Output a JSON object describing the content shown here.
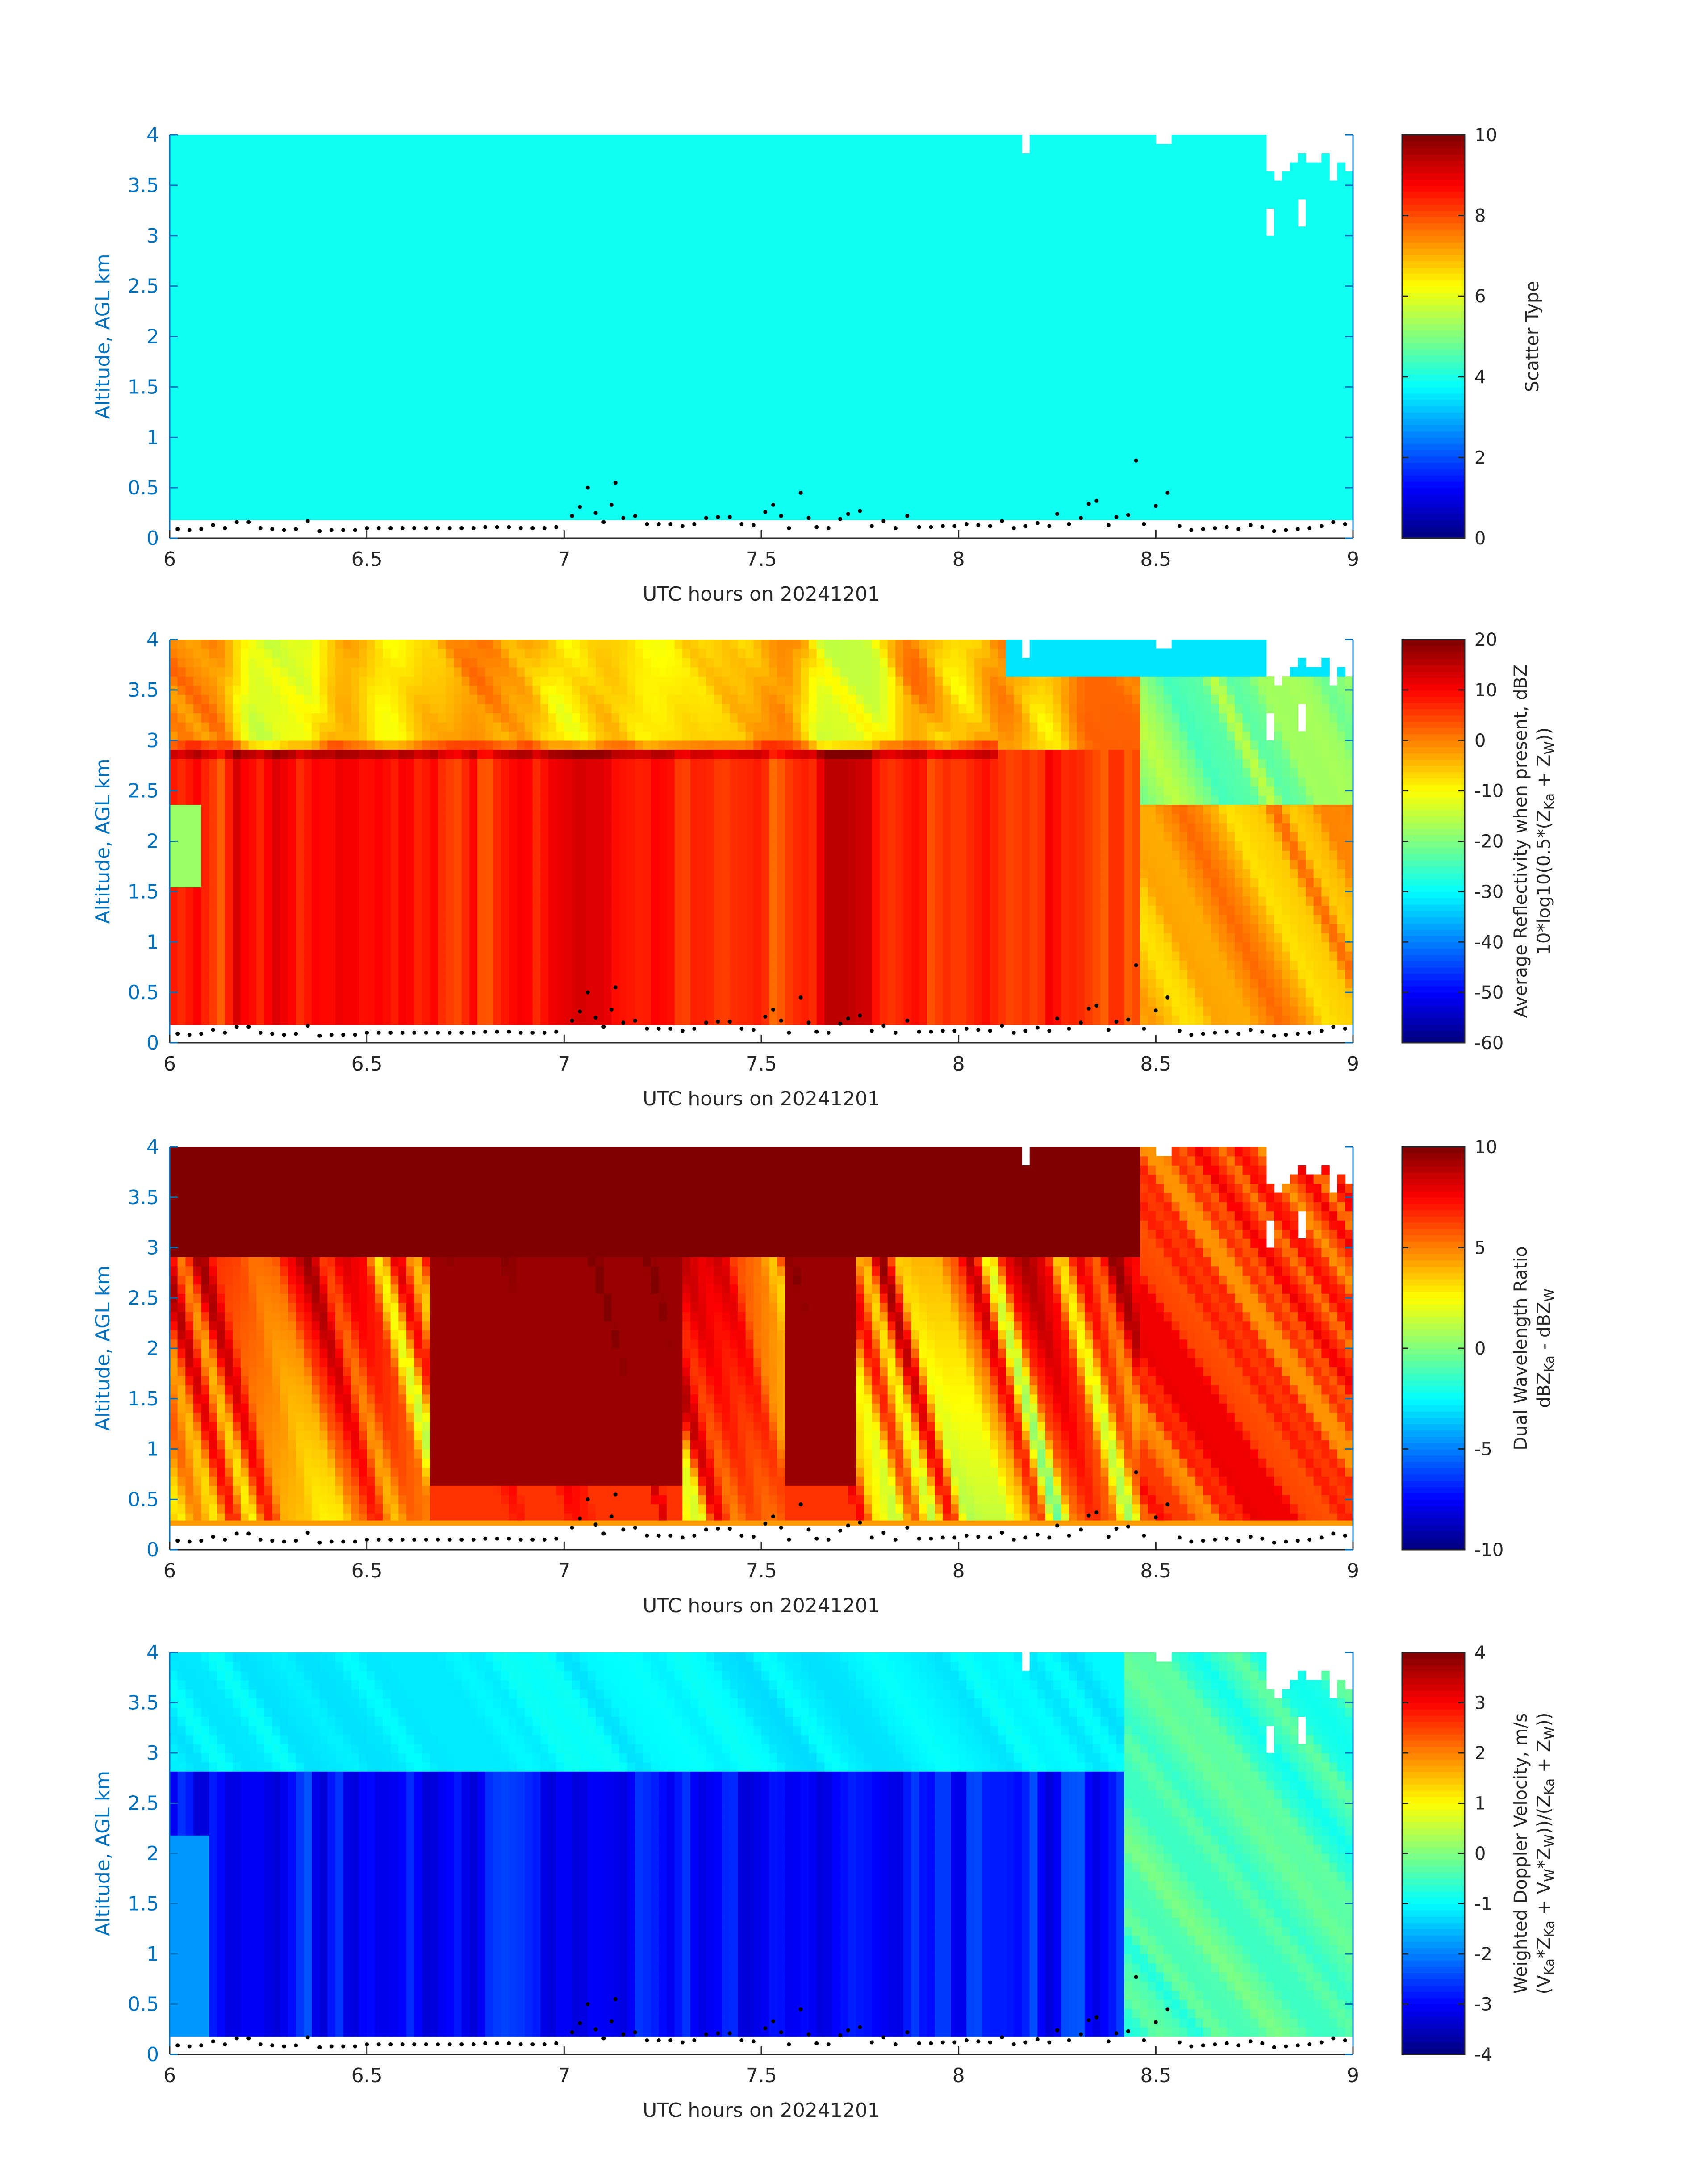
{
  "chart_data": [
    {
      "type": "heatmap",
      "variable": "scatter_type",
      "xlabel": "UTC hours on 20241201",
      "ylabel": "Altitude, AGL km",
      "xlim": [
        6,
        9
      ],
      "ylim": [
        0,
        4
      ],
      "xticks": [
        "6",
        "6.5",
        "7",
        "7.5",
        "8",
        "8.5",
        "9"
      ],
      "yticks": [
        "0",
        "0.5",
        "1",
        "1.5",
        "2",
        "2.5",
        "3",
        "3.5",
        "4"
      ],
      "colorbar": {
        "colormap": "jet",
        "clim": [
          0,
          10
        ],
        "ticks": [
          "0",
          "2",
          "4",
          "6",
          "8",
          "10"
        ],
        "title_lines": [
          {
            "text": "Scatter Type"
          }
        ]
      },
      "dominant_value": 3.9,
      "cloud_base_km": 0.2
    },
    {
      "type": "heatmap",
      "variable": "average_reflectivity",
      "xlabel": "UTC hours on 20241201",
      "ylabel": "Altitude, AGL km",
      "xlim": [
        6,
        9
      ],
      "ylim": [
        0,
        4
      ],
      "xticks": [
        "6",
        "6.5",
        "7",
        "7.5",
        "8",
        "8.5",
        "9"
      ],
      "yticks": [
        "0",
        "0.5",
        "1",
        "1.5",
        "2",
        "2.5",
        "3",
        "3.5",
        "4"
      ],
      "colorbar": {
        "colormap": "jet",
        "clim": [
          -60,
          20
        ],
        "ticks": [
          "-60",
          "-50",
          "-40",
          "-30",
          "-20",
          "-10",
          "0",
          "10",
          "20"
        ],
        "title_lines": [
          {
            "text": "Average Reflectivity when present, dBZ"
          },
          {
            "text": "10*log10(0.5*(Z",
            "sub1": "Ka",
            "mid": " + Z",
            "sub2": "W",
            "end": "))"
          }
        ]
      },
      "melting_layer_km": 2.9,
      "cloud_base_km": 0.2
    },
    {
      "type": "heatmap",
      "variable": "dual_wavelength_ratio",
      "xlabel": "UTC hours on 20241201",
      "ylabel": "Altitude, AGL km",
      "xlim": [
        6,
        9
      ],
      "ylim": [
        0,
        4
      ],
      "xticks": [
        "6",
        "6.5",
        "7",
        "7.5",
        "8",
        "8.5",
        "9"
      ],
      "yticks": [
        "0",
        "0.5",
        "1",
        "1.5",
        "2",
        "2.5",
        "3",
        "3.5",
        "4"
      ],
      "colorbar": {
        "colormap": "jet",
        "clim": [
          -10,
          10
        ],
        "ticks": [
          "-10",
          "-5",
          "0",
          "5",
          "10"
        ],
        "title_lines": [
          {
            "text": "Dual Wavelength Ratio"
          },
          {
            "text": "dBZ",
            "sub1": "Ka",
            "mid": " - dBZ",
            "sub2": "W",
            "end": ""
          }
        ]
      },
      "melting_layer_km": 2.9,
      "cloud_base_km": 0.27
    },
    {
      "type": "heatmap",
      "variable": "weighted_doppler_velocity",
      "xlabel": "UTC hours on 20241201",
      "ylabel": "Altitude, AGL km",
      "xlim": [
        6,
        9
      ],
      "ylim": [
        0,
        4
      ],
      "xticks": [
        "6",
        "6.5",
        "7",
        "7.5",
        "8",
        "8.5",
        "9"
      ],
      "yticks": [
        "0",
        "0.5",
        "1",
        "1.5",
        "2",
        "2.5",
        "3",
        "3.5",
        "4"
      ],
      "colorbar": {
        "colormap": "jet",
        "clim": [
          -4,
          4
        ],
        "ticks": [
          "-4",
          "-3",
          "-2",
          "-1",
          "0",
          "1",
          "2",
          "3",
          "4"
        ],
        "title_lines": [
          {
            "text": "Weighted Doppler Velocity, m/s"
          },
          {
            "text": "(V",
            "sub1": "Ka",
            "mid": "*Z",
            "sub2": "Ka",
            "end": " + V",
            "sub3": "W",
            "mid2": "*Z",
            "sub4": "W",
            "end2": "))/(Z",
            "sub5": "Ka",
            "mid3": " + Z",
            "sub6": "W",
            "end3": "))"
          }
        ]
      },
      "melting_layer_km": 2.85,
      "cloud_base_km": 0.2
    }
  ],
  "ceilometer_dots": {
    "description_values_in_data_units": [
      [
        6.02,
        0.09
      ],
      [
        6.05,
        0.08
      ],
      [
        6.08,
        0.09
      ],
      [
        6.11,
        0.13
      ],
      [
        6.14,
        0.1
      ],
      [
        6.17,
        0.16
      ],
      [
        6.2,
        0.16
      ],
      [
        6.23,
        0.1
      ],
      [
        6.26,
        0.09
      ],
      [
        6.29,
        0.08
      ],
      [
        6.32,
        0.09
      ],
      [
        6.35,
        0.17
      ],
      [
        6.38,
        0.07
      ],
      [
        6.41,
        0.08
      ],
      [
        6.44,
        0.08
      ],
      [
        6.47,
        0.08
      ],
      [
        6.5,
        0.1
      ],
      [
        6.53,
        0.1
      ],
      [
        6.56,
        0.1
      ],
      [
        6.59,
        0.1
      ],
      [
        6.62,
        0.1
      ],
      [
        6.65,
        0.1
      ],
      [
        6.68,
        0.1
      ],
      [
        6.71,
        0.1
      ],
      [
        6.74,
        0.1
      ],
      [
        6.77,
        0.1
      ],
      [
        6.8,
        0.11
      ],
      [
        6.83,
        0.11
      ],
      [
        6.86,
        0.11
      ],
      [
        6.89,
        0.1
      ],
      [
        6.92,
        0.1
      ],
      [
        6.95,
        0.1
      ],
      [
        6.98,
        0.11
      ],
      [
        7.02,
        0.22
      ],
      [
        7.04,
        0.31
      ],
      [
        7.06,
        0.5
      ],
      [
        7.08,
        0.25
      ],
      [
        7.1,
        0.16
      ],
      [
        7.12,
        0.33
      ],
      [
        7.13,
        0.55
      ],
      [
        7.15,
        0.2
      ],
      [
        7.18,
        0.22
      ],
      [
        7.21,
        0.14
      ],
      [
        7.24,
        0.14
      ],
      [
        7.27,
        0.14
      ],
      [
        7.3,
        0.12
      ],
      [
        7.33,
        0.14
      ],
      [
        7.36,
        0.2
      ],
      [
        7.39,
        0.21
      ],
      [
        7.42,
        0.21
      ],
      [
        7.45,
        0.14
      ],
      [
        7.48,
        0.13
      ],
      [
        7.51,
        0.26
      ],
      [
        7.53,
        0.33
      ],
      [
        7.55,
        0.22
      ],
      [
        7.57,
        0.1
      ],
      [
        7.6,
        0.45
      ],
      [
        7.62,
        0.2
      ],
      [
        7.64,
        0.11
      ],
      [
        7.67,
        0.1
      ],
      [
        7.7,
        0.19
      ],
      [
        7.72,
        0.24
      ],
      [
        7.75,
        0.27
      ],
      [
        7.78,
        0.12
      ],
      [
        7.81,
        0.17
      ],
      [
        7.84,
        0.1
      ],
      [
        7.87,
        0.22
      ],
      [
        7.9,
        0.11
      ],
      [
        7.93,
        0.11
      ],
      [
        7.96,
        0.12
      ],
      [
        7.99,
        0.12
      ],
      [
        8.02,
        0.14
      ],
      [
        8.05,
        0.13
      ],
      [
        8.08,
        0.12
      ],
      [
        8.11,
        0.17
      ],
      [
        8.14,
        0.1
      ],
      [
        8.17,
        0.12
      ],
      [
        8.2,
        0.15
      ],
      [
        8.23,
        0.12
      ],
      [
        8.25,
        0.24
      ],
      [
        8.28,
        0.14
      ],
      [
        8.31,
        0.2
      ],
      [
        8.33,
        0.34
      ],
      [
        8.35,
        0.37
      ],
      [
        8.38,
        0.13
      ],
      [
        8.4,
        0.21
      ],
      [
        8.43,
        0.23
      ],
      [
        8.45,
        0.77
      ],
      [
        8.47,
        0.14
      ],
      [
        8.5,
        0.32
      ],
      [
        8.53,
        0.45
      ],
      [
        8.56,
        0.12
      ],
      [
        8.59,
        0.08
      ],
      [
        8.62,
        0.09
      ],
      [
        8.65,
        0.1
      ],
      [
        8.68,
        0.11
      ],
      [
        8.71,
        0.09
      ],
      [
        8.74,
        0.13
      ],
      [
        8.77,
        0.11
      ],
      [
        8.8,
        0.07
      ],
      [
        8.83,
        0.08
      ],
      [
        8.86,
        0.09
      ],
      [
        8.89,
        0.1
      ],
      [
        8.92,
        0.12
      ],
      [
        8.95,
        0.16
      ],
      [
        8.98,
        0.14
      ]
    ]
  }
}
